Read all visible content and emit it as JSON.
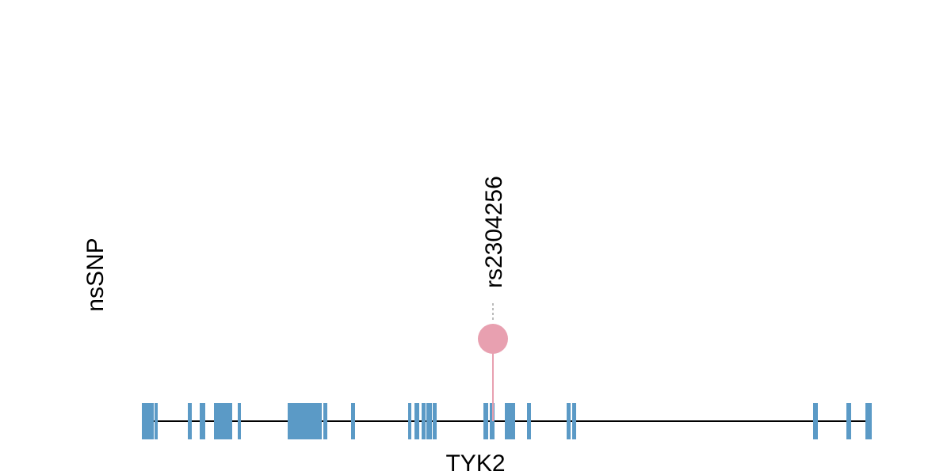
{
  "track": {
    "label": "nsSNP"
  },
  "snp": {
    "label": "rs2304256"
  },
  "gene": {
    "label": "TYK2"
  }
}
